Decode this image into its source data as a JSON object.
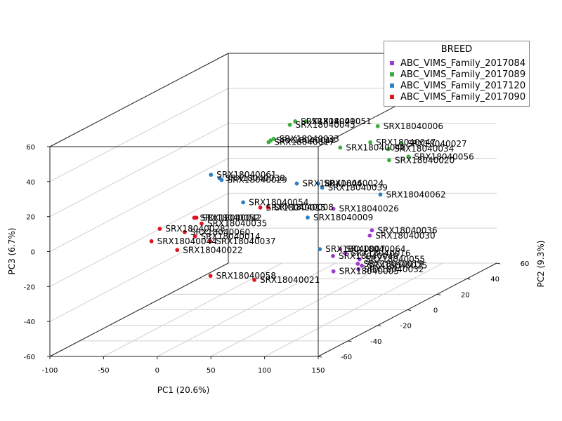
{
  "chart_data": {
    "type": "scatter",
    "subtype": "scatter3d",
    "title": "",
    "xlabel": "PC1 (20.6%)",
    "ylabel": "PC2 (9.3%)",
    "zlabel": "PC3 (6.7%)",
    "xlim": [
      -100,
      150
    ],
    "ylim": [
      -60,
      60
    ],
    "zlim": [
      -60,
      60
    ],
    "x_ticks": [
      "-100",
      "-50",
      "0",
      "50",
      "100",
      "150"
    ],
    "y_ticks": [
      "-60",
      "-40",
      "-20",
      "0",
      "20",
      "40",
      "60"
    ],
    "z_ticks": [
      "-60",
      "-40",
      "-20",
      "0",
      "20",
      "40",
      "60"
    ],
    "grid": true,
    "legend": {
      "title": "BREED",
      "placement": "top-right",
      "entries": [
        {
          "name": "ABC_VIMS_Family_2017084",
          "color": "#9c3ccc"
        },
        {
          "name": "ABC_VIMS_Family_2017089",
          "color": "#3fae3f"
        },
        {
          "name": "ABC_VIMS_Family_2017120",
          "color": "#2f7fc1"
        },
        {
          "name": "ABC_VIMS_Family_2017090",
          "color": "#e0141e"
        }
      ]
    },
    "series": [
      {
        "name": "ABC_VIMS_Family_2017084",
        "color": "#9c3ccc",
        "points": [
          {
            "label": "SRX18040026",
            "x": 88,
            "y": -5,
            "z": 0
          },
          {
            "label": "SRX18040036",
            "x": 128,
            "y": -8,
            "z": -11
          },
          {
            "label": "SRX18040030",
            "x": 126,
            "y": -8,
            "z": -14
          },
          {
            "label": "SRX18040016",
            "x": 110,
            "y": -13,
            "z": -22
          },
          {
            "label": "SRX18040064",
            "x": 104,
            "y": -12,
            "z": -20
          },
          {
            "label": "SRX18040040",
            "x": 100,
            "y": -14,
            "z": -23
          },
          {
            "label": "SRX18040005",
            "x": 106,
            "y": -18,
            "z": -30
          },
          {
            "label": "SRX18040032",
            "x": 132,
            "y": -20,
            "z": -28
          },
          {
            "label": "SRX18040025",
            "x": 138,
            "y": -22,
            "z": -25
          },
          {
            "label": "SRX18040055",
            "x": 140,
            "y": -25,
            "z": -20
          },
          {
            "label": "SRX18040019",
            "x": 137,
            "y": -24,
            "z": -23
          }
        ]
      },
      {
        "name": "ABC_VIMS_Family_2017089",
        "color": "#3fae3f",
        "points": [
          {
            "label": "SRX18040051",
            "x": 0,
            "y": 40,
            "z": 30
          },
          {
            "label": "SRX18040010",
            "x": -10,
            "y": 40,
            "z": 30
          },
          {
            "label": "SRX18040045",
            "x": -15,
            "y": 40,
            "z": 28
          },
          {
            "label": "SRX18040006",
            "x": 60,
            "y": 45,
            "z": 25
          },
          {
            "label": "SRX18040033",
            "x": -30,
            "y": 40,
            "z": 20
          },
          {
            "label": "SRX18040012",
            "x": -30,
            "y": 38,
            "z": 20
          },
          {
            "label": "SRX18040017",
            "x": -32,
            "y": 38,
            "z": 19
          },
          {
            "label": "SRX18040047",
            "x": 60,
            "y": 40,
            "z": 18
          },
          {
            "label": "SRX18040027",
            "x": 82,
            "y": 45,
            "z": 15
          },
          {
            "label": "SRX18040048",
            "x": 32,
            "y": 40,
            "z": 15
          },
          {
            "label": "SRX18040034",
            "x": 70,
            "y": 45,
            "z": 12
          },
          {
            "label": "SRX18040056",
            "x": 90,
            "y": 44,
            "z": 8
          },
          {
            "label": "SRX18040020",
            "x": 72,
            "y": 44,
            "z": 6
          }
        ]
      },
      {
        "name": "ABC_VIMS_Family_2017120",
        "color": "#2f7fc1",
        "points": [
          {
            "label": "SRX18040062",
            "x": 122,
            "y": 2,
            "z": 5
          },
          {
            "label": "SRX18040046",
            "x": 40,
            "y": 5,
            "z": 10
          },
          {
            "label": "SRX18040024",
            "x": 60,
            "y": 5,
            "z": 10
          },
          {
            "label": "SRX18040039",
            "x": 65,
            "y": 4,
            "z": 8
          },
          {
            "label": "SRX18040061",
            "x": -40,
            "y": 5,
            "z": 15
          },
          {
            "label": "SRX18040038",
            "x": -32,
            "y": 5,
            "z": 13
          },
          {
            "label": "SRX18040029",
            "x": -30,
            "y": 5,
            "z": 12
          },
          {
            "label": "SRX18040054",
            "x": 8,
            "y": -8,
            "z": 5
          },
          {
            "label": "SRX18040009",
            "x": 64,
            "y": -5,
            "z": -5
          },
          {
            "label": "SRX18040007",
            "x": 85,
            "y": -12,
            "z": -20
          }
        ]
      },
      {
        "name": "ABC_VIMS_Family_2017090",
        "color": "#e0141e",
        "points": [
          {
            "label": "SRX18040008",
            "x": 34,
            "y": -10,
            "z": 3
          },
          {
            "label": "SRX18040015",
            "x": 24,
            "y": -8,
            "z": 2
          },
          {
            "label": "SRX18040052",
            "x": -32,
            "y": -12,
            "z": -2
          },
          {
            "label": "SRX18040042",
            "x": -30,
            "y": -12,
            "z": -2
          },
          {
            "label": "SRX18040035",
            "x": -21,
            "y": -15,
            "z": -4
          },
          {
            "label": "SRX18040028",
            "x": -60,
            "y": -15,
            "z": -7
          },
          {
            "label": "SRX18040060",
            "x": -34,
            "y": -17,
            "z": -8
          },
          {
            "label": "SRX18040014",
            "x": -23,
            "y": -18,
            "z": -10
          },
          {
            "label": "SRX18040044",
            "x": -58,
            "y": -22,
            "z": -11
          },
          {
            "label": "SRX18040037",
            "x": -6,
            "y": -20,
            "z": -12
          },
          {
            "label": "SRX18040022",
            "x": -34,
            "y": -22,
            "z": -16
          },
          {
            "label": "SRX18040058",
            "x": 15,
            "y": -35,
            "z": -25
          },
          {
            "label": "SRX18040021",
            "x": 60,
            "y": -38,
            "z": -26
          }
        ]
      }
    ]
  }
}
